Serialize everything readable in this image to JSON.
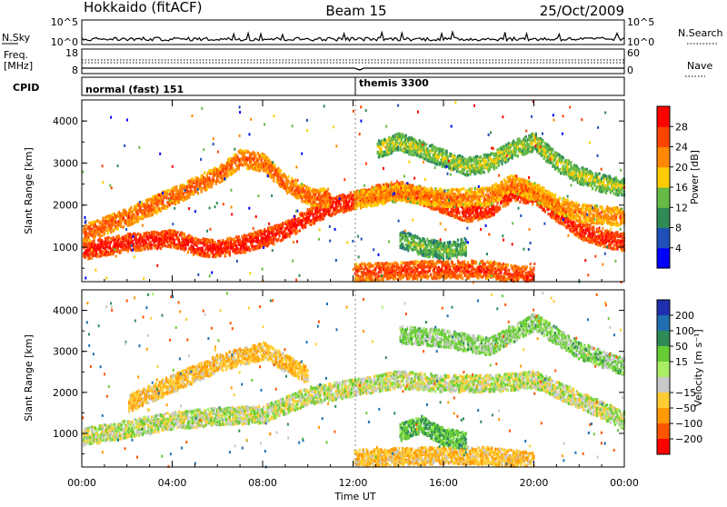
{
  "header": {
    "station": "Hokkaido (fitACF)",
    "beam": "Beam 15",
    "date": "25/Oct/2009"
  },
  "nsky_panel": {
    "left_label": "N.Sky",
    "right_label": "N.Search",
    "left_ticks": [
      "10^5",
      "10^0"
    ],
    "right_ticks": [
      "10^5",
      "10^0"
    ]
  },
  "freq_panel": {
    "left_label_1": "Freq.",
    "left_label_2": "[MHz]",
    "left_ticks": [
      "18",
      "8"
    ],
    "right_label": "Nave",
    "right_ticks": [
      "60",
      "0"
    ]
  },
  "cpid_panel": {
    "label": "CPID",
    "modes": [
      "normal (fast) 151",
      "themis 3300"
    ]
  },
  "power_panel": {
    "ylabel": "Slant Range [km]",
    "yticks": [
      "1000",
      "2000",
      "3000",
      "4000"
    ],
    "colorbar_label": "Power [dB]",
    "colorbar_ticks": [
      "4",
      "8",
      "12",
      "16",
      "20",
      "24",
      "28"
    ],
    "colors": [
      "#0000ff",
      "#1f4fb8",
      "#2e8b57",
      "#66bb44",
      "#ffcc00",
      "#ff8800",
      "#ff4400",
      "#ff0000"
    ]
  },
  "velocity_panel": {
    "ylabel": "Slant Range [km]",
    "yticks": [
      "1000",
      "2000",
      "3000",
      "4000"
    ],
    "colorbar_label": "Velocity [m s⁻¹]",
    "colorbar_ticks": [
      "200",
      "100",
      "50",
      "15",
      "−15",
      "−50",
      "−100",
      "−200"
    ],
    "colors": [
      "#1f2fb0",
      "#1f6fb0",
      "#2e8b57",
      "#66cc33",
      "#aaee66",
      "#c8c8c8",
      "#ffcc33",
      "#ff9900",
      "#ff5500",
      "#ff0000"
    ]
  },
  "xaxis": {
    "label": "Time UT",
    "ticks": [
      "00:00",
      "04:00",
      "08:00",
      "12:00",
      "16:00",
      "20:00",
      "00:00"
    ]
  },
  "chart_data": {
    "type": "heatmap",
    "title": "Hokkaido (fitACF)  Beam 15  25/Oct/2009",
    "xlabel": "Time UT",
    "ylabel": "Slant Range [km]",
    "xlim_hours": [
      0,
      24
    ],
    "ylim_km": [
      180,
      4500
    ],
    "grid": false,
    "cpid_switch_hour": 12,
    "power_db_range": [
      0,
      30
    ],
    "velocity_range": [
      -250,
      250
    ],
    "power_features": [
      {
        "name": "",
        "points": [
          [
            0,
            900
          ],
          [
            1,
            1000
          ],
          [
            2,
            1100
          ],
          [
            3,
            1150
          ],
          [
            4,
            1200
          ],
          [
            5,
            1000
          ],
          [
            6,
            950
          ],
          [
            7,
            1050
          ],
          [
            8,
            1200
          ],
          [
            9,
            1400
          ],
          [
            10,
            1700
          ],
          [
            11,
            1950
          ],
          [
            12,
            2100
          ],
          [
            13,
            2250
          ],
          [
            14,
            2350
          ],
          [
            15,
            2200
          ],
          [
            16,
            2000
          ],
          [
            17,
            1800
          ],
          [
            18,
            1900
          ],
          [
            19,
            2300
          ],
          [
            20,
            2200
          ],
          [
            21,
            1800
          ],
          [
            22,
            1400
          ],
          [
            23,
            1200
          ],
          [
            24,
            1100
          ]
        ],
        "power_db": 28
      },
      {
        "name": "",
        "points": [
          [
            0,
            1300
          ],
          [
            2,
            1700
          ],
          [
            4,
            2200
          ],
          [
            6,
            2700
          ],
          [
            7,
            3100
          ],
          [
            8,
            3000
          ],
          [
            9,
            2500
          ],
          [
            10,
            2200
          ],
          [
            11,
            2150
          ]
        ],
        "power_db": 24
      },
      {
        "name": "",
        "points": [
          [
            12,
            2100
          ],
          [
            14,
            2300
          ],
          [
            16,
            2150
          ],
          [
            18,
            2200
          ],
          [
            19,
            2500
          ],
          [
            20,
            2300
          ],
          [
            21,
            2000
          ],
          [
            22,
            1800
          ],
          [
            24,
            1700
          ]
        ],
        "power_db": 22
      },
      {
        "name": "",
        "points": [
          [
            12,
            380
          ],
          [
            14,
            430
          ],
          [
            16,
            460
          ],
          [
            18,
            450
          ],
          [
            19,
            350
          ],
          [
            20,
            300
          ]
        ],
        "power_db": 26
      },
      {
        "name": "",
        "points": [
          [
            13,
            3300
          ],
          [
            14,
            3500
          ],
          [
            15,
            3300
          ],
          [
            16,
            3100
          ],
          [
            17,
            2900
          ],
          [
            18,
            3000
          ],
          [
            19,
            3300
          ],
          [
            20,
            3500
          ],
          [
            21,
            3000
          ],
          [
            22,
            2700
          ],
          [
            23,
            2500
          ],
          [
            24,
            2400
          ]
        ],
        "power_db": 16
      },
      {
        "name": "",
        "points": [
          [
            14,
            1200
          ],
          [
            15,
            1000
          ],
          [
            16,
            900
          ],
          [
            17,
            1000
          ]
        ],
        "power_db": 14
      }
    ],
    "velocity_features": [
      {
        "name": "",
        "points": [
          [
            0,
            900
          ],
          [
            2,
            1100
          ],
          [
            4,
            1300
          ],
          [
            6,
            1400
          ],
          [
            8,
            1450
          ],
          [
            10,
            1900
          ],
          [
            12,
            2100
          ],
          [
            14,
            2300
          ],
          [
            16,
            2200
          ],
          [
            18,
            2200
          ],
          [
            20,
            2300
          ],
          [
            22,
            1800
          ],
          [
            24,
            1300
          ]
        ],
        "velocity": 0
      },
      {
        "name": "",
        "points": [
          [
            2,
            1700
          ],
          [
            4,
            2200
          ],
          [
            6,
            2700
          ],
          [
            8,
            3000
          ],
          [
            10,
            2400
          ]
        ],
        "velocity": -40
      },
      {
        "name": "",
        "points": [
          [
            12,
            380
          ],
          [
            14,
            420
          ],
          [
            16,
            460
          ],
          [
            18,
            440
          ],
          [
            20,
            300
          ]
        ],
        "velocity": -40
      },
      {
        "name": "",
        "points": [
          [
            14,
            1000
          ],
          [
            15,
            1200
          ],
          [
            16,
            900
          ],
          [
            17,
            800
          ]
        ],
        "velocity": 40
      },
      {
        "name": "",
        "points": [
          [
            14,
            3400
          ],
          [
            16,
            3300
          ],
          [
            18,
            3100
          ],
          [
            20,
            3700
          ],
          [
            22,
            3000
          ],
          [
            24,
            2600
          ]
        ],
        "velocity": 20
      }
    ]
  }
}
